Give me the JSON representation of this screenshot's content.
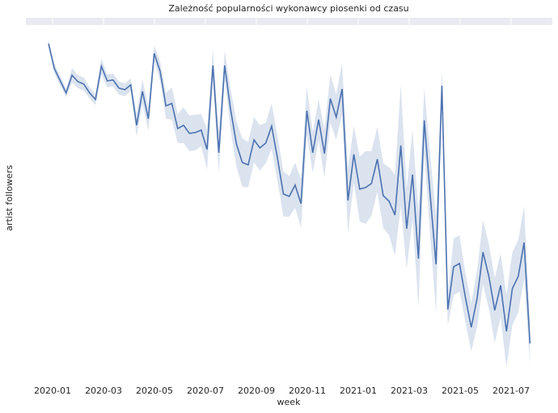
{
  "chart_data": {
    "type": "line",
    "title": "Zależność popularności wykonawcy piosenki od czasu",
    "xlabel": "week",
    "ylabel": "artist followers",
    "x": [
      0,
      1,
      2,
      3,
      4,
      5,
      6,
      7,
      8,
      9,
      10,
      11,
      12,
      13,
      14,
      15,
      16,
      17,
      18,
      19,
      20,
      21,
      22,
      23,
      24,
      25,
      26,
      27,
      28,
      29,
      30,
      31,
      32,
      33,
      34,
      35,
      36,
      37,
      38,
      39,
      40,
      41,
      42,
      43,
      44,
      45,
      46,
      47,
      48,
      49,
      50,
      51,
      52,
      53,
      54,
      55,
      56,
      57,
      58,
      59,
      60,
      61,
      62,
      63,
      64,
      65,
      66,
      67,
      68,
      69,
      70,
      71,
      72,
      73,
      74,
      75,
      76,
      77,
      78,
      79,
      80,
      81,
      82
    ],
    "series": [
      {
        "color": "#4c72b0",
        "values": [
          406,
          375,
          360,
          345,
          367,
          359,
          356,
          345,
          337,
          378,
          360,
          361,
          351,
          349,
          355,
          305,
          347,
          313,
          394,
          372,
          329,
          332,
          301,
          305,
          295,
          296,
          299,
          275,
          379,
          271,
          379,
          325,
          282,
          259,
          256,
          287,
          277,
          283,
          304,
          264,
          220,
          217,
          231,
          208,
          323,
          271,
          312,
          270,
          338,
          315,
          350,
          212,
          269,
          226,
          228,
          233,
          263,
          218,
          211,
          194,
          280,
          177,
          244,
          140,
          311,
          219,
          133,
          354,
          77,
          130,
          134,
          92,
          55,
          91,
          148,
          118,
          76,
          107,
          50,
          103,
          118,
          160,
          35
        ],
        "errors": [
          5,
          6,
          6,
          5,
          9,
          8,
          8,
          7,
          7,
          10,
          8,
          8,
          8,
          8,
          8,
          14,
          15,
          15,
          10,
          12,
          16,
          20,
          18,
          22,
          22,
          22,
          20,
          25,
          20,
          25,
          18,
          25,
          28,
          30,
          28,
          28,
          28,
          25,
          28,
          28,
          28,
          25,
          28,
          30,
          30,
          25,
          25,
          30,
          30,
          28,
          32,
          40,
          35,
          40,
          45,
          40,
          40,
          40,
          42,
          50,
          75,
          50,
          55,
          60,
          40,
          50,
          60,
          20,
          20,
          35,
          35,
          30,
          30,
          35,
          40,
          40,
          40,
          40,
          45,
          45,
          45,
          45,
          25
        ]
      }
    ],
    "xlim": [
      -3.86,
      85.81
    ],
    "ylim": [
      0,
      430
    ],
    "xticks": [
      {
        "value": 0.69,
        "label": "2020-01"
      },
      {
        "value": 9.37,
        "label": "2020-03"
      },
      {
        "value": 18.04,
        "label": "2020-05"
      },
      {
        "value": 26.72,
        "label": "2020-07"
      },
      {
        "value": 35.4,
        "label": "2020-09"
      },
      {
        "value": 44.08,
        "label": "2020-11"
      },
      {
        "value": 52.75,
        "label": "2021-01"
      },
      {
        "value": 61.43,
        "label": "2021-03"
      },
      {
        "value": 70.11,
        "label": "2021-05"
      },
      {
        "value": 78.79,
        "label": "2021-07"
      }
    ]
  }
}
